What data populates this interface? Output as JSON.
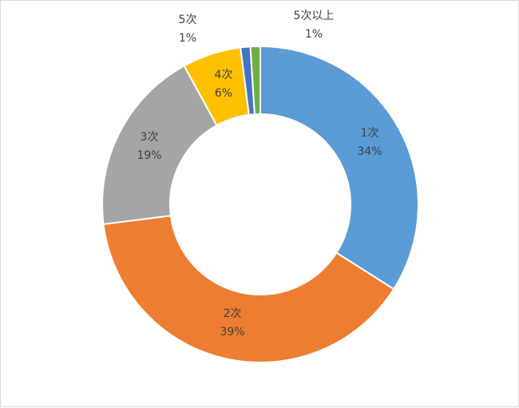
{
  "chart_data": {
    "type": "donut",
    "title": "",
    "categories": [
      "1次",
      "2次",
      "3次",
      "4次",
      "5次",
      "5次以上"
    ],
    "values": [
      34,
      39,
      19,
      6,
      1,
      1
    ],
    "labels": [
      "34%",
      "39%",
      "19%",
      "6%",
      "1%",
      "1%"
    ],
    "colors": [
      "#5b9bd5",
      "#ed7d31",
      "#a5a5a5",
      "#ffc000",
      "#4472c4",
      "#70ad47"
    ],
    "start": "12 o'clock",
    "direction": "clockwise",
    "legend": "none"
  }
}
